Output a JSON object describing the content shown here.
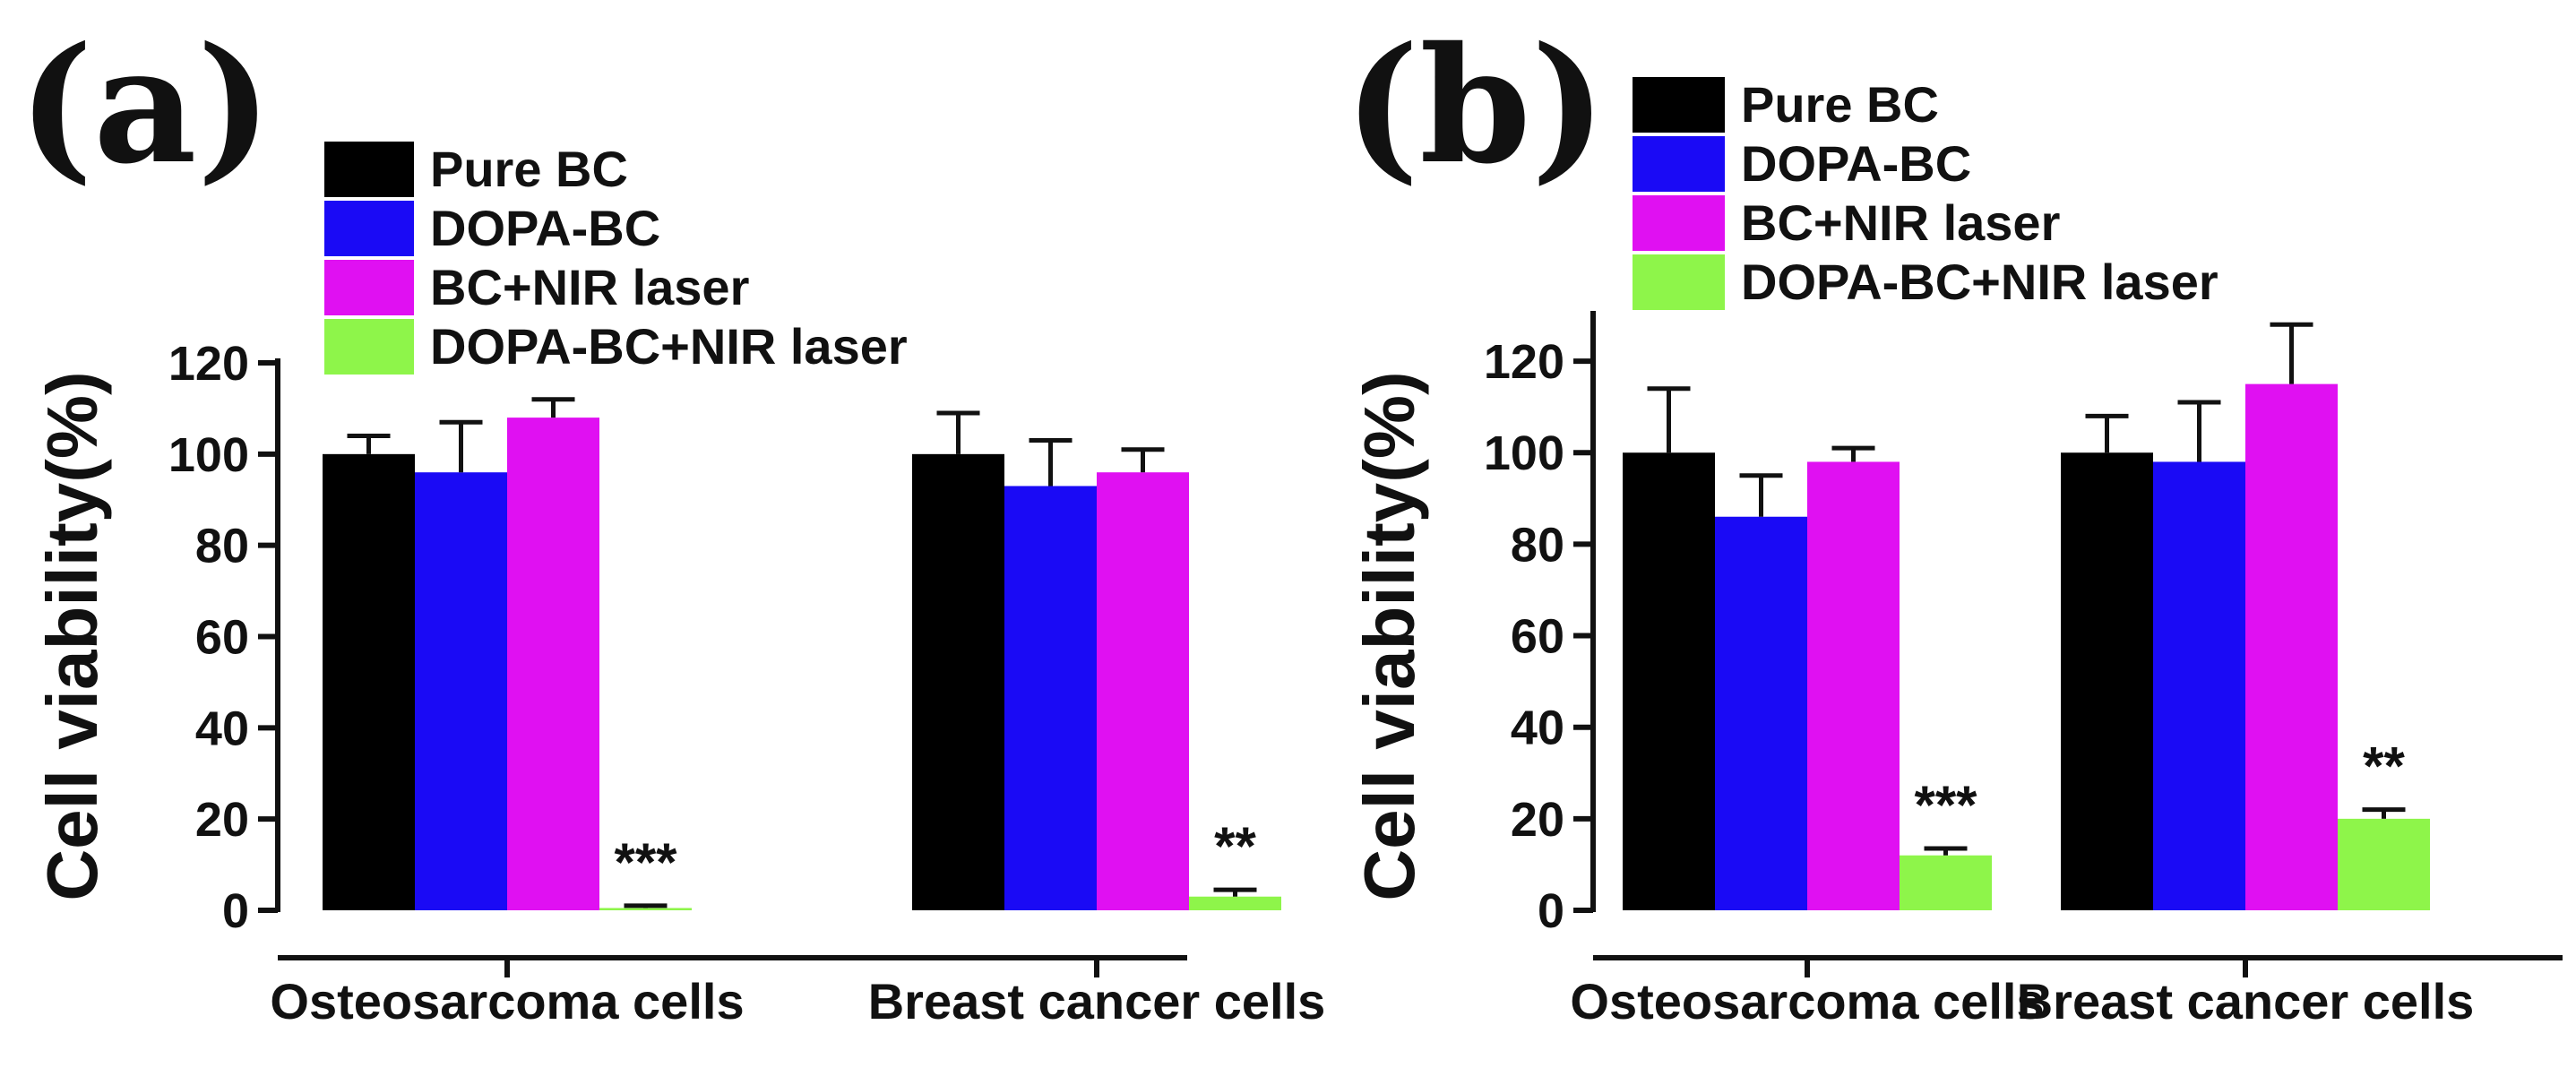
{
  "chart_data": [
    {
      "panel": "(a)",
      "type": "bar",
      "ylabel": "Cell viability(%)",
      "ylim": [
        0,
        120
      ],
      "yticks": [
        "0",
        "20",
        "40",
        "60",
        "80",
        "100",
        "120"
      ],
      "categories": [
        "Osteosarcoma cells",
        "Breast cancer cells"
      ],
      "series": [
        {
          "name": "Pure BC",
          "color": "#000000",
          "values": [
            100,
            100
          ],
          "errors": [
            4,
            9
          ]
        },
        {
          "name": "DOPA-BC",
          "color": "#1a0af5",
          "values": [
            96,
            93
          ],
          "errors": [
            11,
            10
          ]
        },
        {
          "name": "BC+NIR laser",
          "color": "#e010f2",
          "values": [
            108,
            96
          ],
          "errors": [
            4,
            5
          ]
        },
        {
          "name": "DOPA-BC+NIR laser",
          "color": "#8ef54a",
          "values": [
            0.5,
            3
          ],
          "errors": [
            0.5,
            1.5
          ]
        }
      ],
      "annotations": [
        "***",
        "**"
      ]
    },
    {
      "panel": "(b)",
      "type": "bar",
      "ylabel": "Cell viability(%)",
      "ylim": [
        0,
        130
      ],
      "yticks": [
        "0",
        "20",
        "40",
        "60",
        "80",
        "100",
        "120"
      ],
      "categories": [
        "Osteosarcoma cells",
        "Breast cancer cells"
      ],
      "series": [
        {
          "name": "Pure BC",
          "color": "#000000",
          "values": [
            100,
            100
          ],
          "errors": [
            14,
            8
          ]
        },
        {
          "name": "DOPA-BC",
          "color": "#1a0af5",
          "values": [
            86,
            98
          ],
          "errors": [
            9,
            13
          ]
        },
        {
          "name": "BC+NIR laser",
          "color": "#e010f2",
          "values": [
            98,
            115
          ],
          "errors": [
            3,
            13
          ]
        },
        {
          "name": "DOPA-BC+NIR laser",
          "color": "#8ef54a",
          "values": [
            12,
            20
          ],
          "errors": [
            1.5,
            2
          ]
        }
      ],
      "annotations": [
        "***",
        "**"
      ]
    }
  ]
}
